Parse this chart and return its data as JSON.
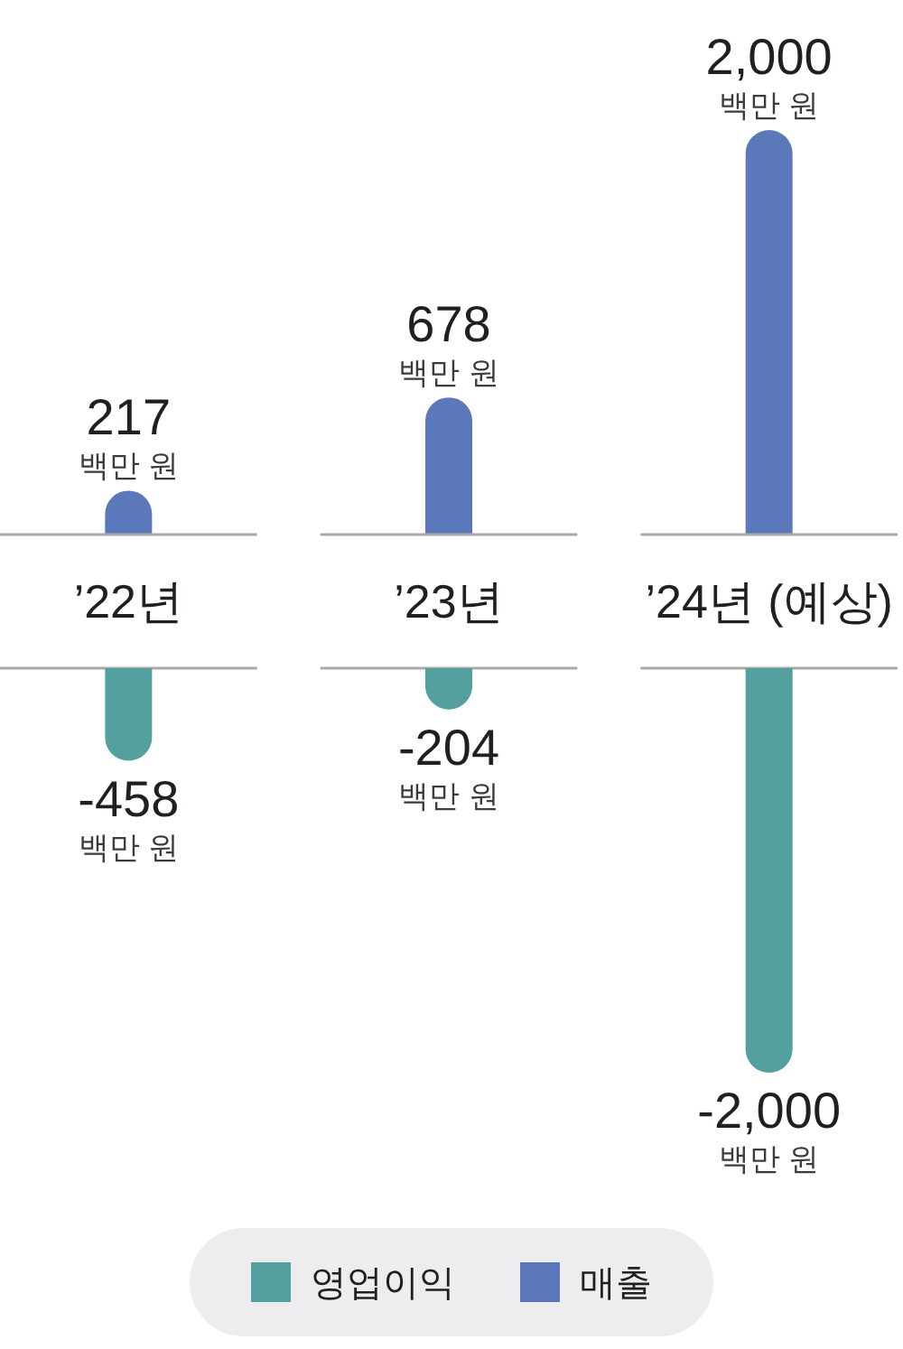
{
  "chart_data": [
    {
      "type": "bar",
      "categories": [
        "’22년",
        "’23년",
        "’24년 (예상)"
      ],
      "series": [
        {
          "name": "매출",
          "color": "#5b78ba",
          "values": [
            217,
            678,
            2000
          ],
          "value_labels": [
            "217\n백만 원",
            "678\n백만 원",
            "2,000\n백만 원"
          ]
        }
      ]
    },
    {
      "type": "bar",
      "categories": [
        null,
        null,
        null
      ],
      "legend": "bottom",
      "series": [
        {
          "name": "영업이익",
          "color": "#53a09f",
          "values": [
            -458,
            -204,
            -2000
          ],
          "value_labels": [
            "-458\n백만 원",
            "-204\n백만 원",
            "-2,000\n백만 원"
          ]
        }
      ]
    }
  ]
}
